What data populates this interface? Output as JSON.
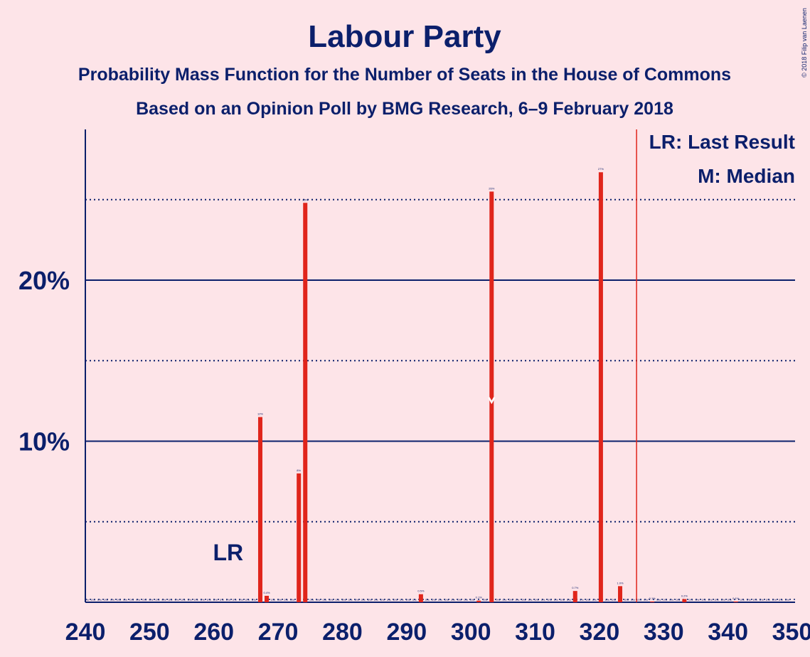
{
  "chart_data": {
    "type": "bar",
    "title": "Labour Party",
    "subtitle1": "Probability Mass Function for the Number of Seats in the House of Commons",
    "subtitle2": "Based on an Opinion Poll by BMG Research, 6–9 February 2018",
    "copyright": "© 2018 Filip van Laenen",
    "xlim": [
      240,
      350
    ],
    "ylim": [
      0,
      29
    ],
    "x_ticks": [
      240,
      250,
      260,
      270,
      280,
      290,
      300,
      310,
      320,
      330,
      340,
      350
    ],
    "y_ticks_labeled": [
      {
        "value": 10,
        "label": "10%"
      },
      {
        "value": 20,
        "label": "20%"
      }
    ],
    "y_gridlines_dotted": [
      5,
      15,
      25
    ],
    "y_gridlines_solid": [
      10,
      20
    ],
    "bar_color": "#e0251b",
    "text_color": "#0b1f6b",
    "background": "#fde4e8",
    "last_result": {
      "seat": 262,
      "label": "LR"
    },
    "median": {
      "seat": 303,
      "value": 12.5
    },
    "majority_line": 326,
    "legend": [
      "LR: Last Result",
      "M: Median"
    ],
    "bars": [
      {
        "seat": 267,
        "value": 11.5,
        "label": "12%"
      },
      {
        "seat": 268,
        "value": 0.4,
        "label": "0.4%"
      },
      {
        "seat": 273,
        "value": 8.0,
        "label": "8%"
      },
      {
        "seat": 274,
        "value": 24.8,
        "label": "25%"
      },
      {
        "seat": 292,
        "value": 0.5,
        "label": "0.5%"
      },
      {
        "seat": 301,
        "value": 0.1,
        "label": "0.1%"
      },
      {
        "seat": 303,
        "value": 25.5,
        "label": "26%"
      },
      {
        "seat": 316,
        "value": 0.7,
        "label": "0.7%"
      },
      {
        "seat": 320,
        "value": 26.7,
        "label": "27%"
      },
      {
        "seat": 323,
        "value": 1.0,
        "label": "1.0%"
      },
      {
        "seat": 328,
        "value": 0.05,
        "label": "0.1%"
      },
      {
        "seat": 333,
        "value": 0.2,
        "label": "0.2%"
      },
      {
        "seat": 341,
        "value": 0.05,
        "label": "0.1%"
      }
    ],
    "zero_label": "0%"
  }
}
